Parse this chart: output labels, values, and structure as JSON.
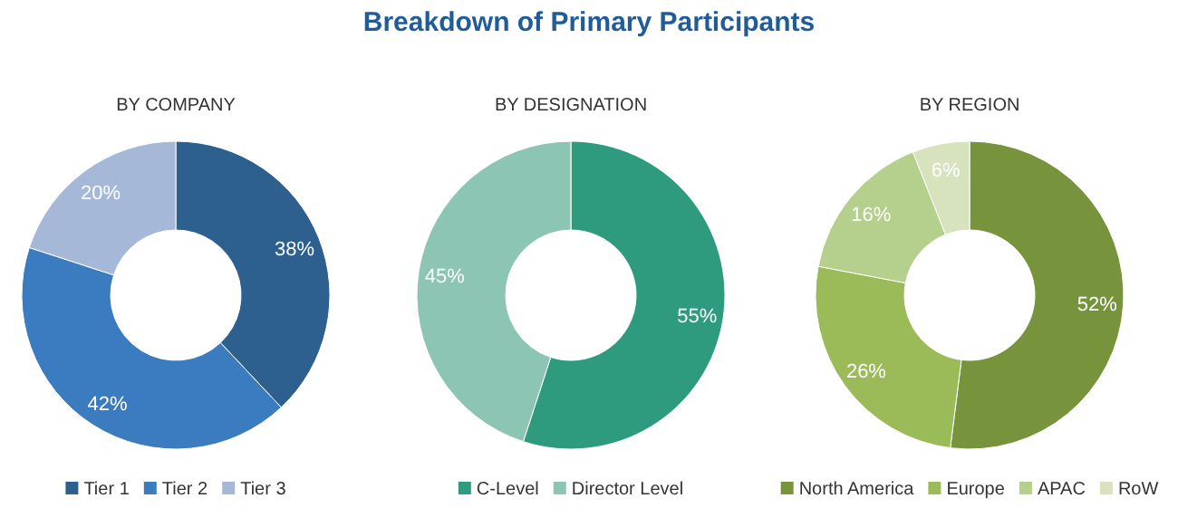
{
  "chart_data": [
    {
      "type": "donut",
      "subtitle": "BY COMPANY",
      "categories": [
        "Tier 1",
        "Tier 2",
        "Tier 3"
      ],
      "values": [
        38,
        42,
        20
      ],
      "value_labels": [
        "38%",
        "42%",
        "20%"
      ],
      "colors": [
        "#2d5f8f",
        "#3b7bbf",
        "#a5b8d8"
      ],
      "legend": "bottom"
    },
    {
      "type": "donut",
      "title": "Breakdown of Primary Participants",
      "subtitle": "BY DESIGNATION",
      "categories": [
        "C-Level",
        "Director Level"
      ],
      "values": [
        55,
        45
      ],
      "value_labels": [
        "55%",
        "45%"
      ],
      "colors": [
        "#2e9a7e",
        "#8dc5b4"
      ],
      "legend": "bottom"
    },
    {
      "type": "donut",
      "subtitle": "BY REGION",
      "categories": [
        "North America",
        "Europe",
        "APAC",
        "RoW"
      ],
      "values": [
        52,
        26,
        16,
        6
      ],
      "value_labels": [
        "52%",
        "26%",
        "16%",
        "6%"
      ],
      "colors": [
        "#77933c",
        "#9bbb59",
        "#b5cf8d",
        "#d6e3bc"
      ],
      "legend": "bottom"
    }
  ]
}
